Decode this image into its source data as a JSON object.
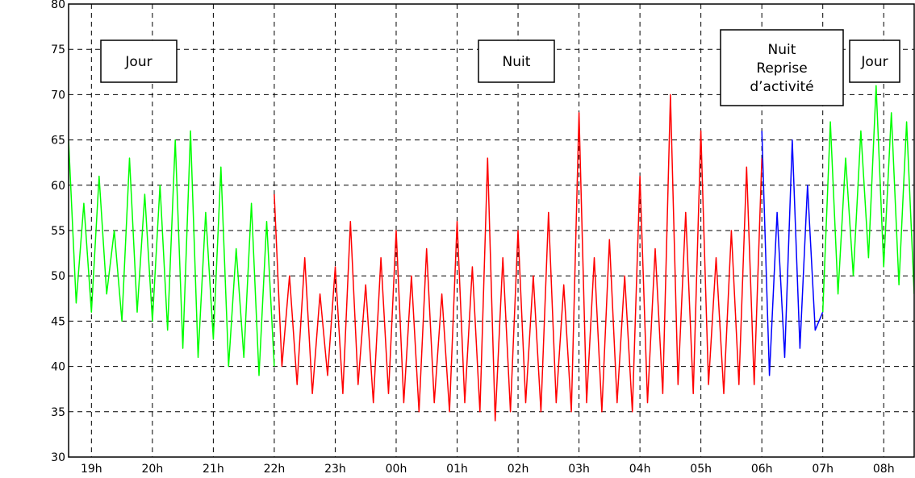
{
  "chart_data": {
    "type": "line",
    "xlim": [
      18.625,
      32.5
    ],
    "ylim": [
      30,
      80
    ],
    "xticks": [
      {
        "value": 19,
        "label": "19h"
      },
      {
        "value": 20,
        "label": "20h"
      },
      {
        "value": 21,
        "label": "21h"
      },
      {
        "value": 22,
        "label": "22h"
      },
      {
        "value": 23,
        "label": "23h"
      },
      {
        "value": 24,
        "label": "00h"
      },
      {
        "value": 25,
        "label": "01h"
      },
      {
        "value": 26,
        "label": "02h"
      },
      {
        "value": 27,
        "label": "03h"
      },
      {
        "value": 28,
        "label": "04h"
      },
      {
        "value": 29,
        "label": "05h"
      },
      {
        "value": 30,
        "label": "06h"
      },
      {
        "value": 31,
        "label": "07h"
      },
      {
        "value": 32,
        "label": "08h"
      }
    ],
    "yticks": [
      30,
      35,
      40,
      45,
      50,
      55,
      60,
      65,
      70,
      75,
      80
    ],
    "grid": true,
    "series": [
      {
        "color": "#00ff00",
        "x": [
          18.625,
          18.75,
          18.875,
          19,
          19.125,
          19.25,
          19.375,
          19.5,
          19.625,
          19.75,
          19.875,
          20,
          20.125,
          20.25,
          20.375,
          20.5,
          20.625,
          20.75,
          20.875,
          21,
          21.125,
          21.25,
          21.375,
          21.5,
          21.625,
          21.75,
          21.875,
          22
        ],
        "values": [
          65,
          47,
          58,
          46,
          61,
          48,
          55,
          45,
          63,
          46,
          59,
          45,
          60,
          44,
          65,
          42,
          66,
          41,
          57,
          43,
          62,
          40,
          53,
          41,
          58,
          39,
          56,
          40
        ]
      },
      {
        "color": "#ff0000",
        "x": [
          22,
          22.125,
          22.25,
          22.375,
          22.5,
          22.625,
          22.75,
          22.875,
          23,
          23.125,
          23.25,
          23.375,
          23.5,
          23.625,
          23.75,
          23.875,
          24,
          24.125,
          24.25,
          24.375,
          24.5,
          24.625,
          24.75,
          24.875,
          25,
          25.125,
          25.25,
          25.375,
          25.5,
          25.625,
          25.75,
          25.875,
          26,
          26.125,
          26.25,
          26.375,
          26.5,
          26.625,
          26.75,
          26.875,
          27,
          27.125,
          27.25,
          27.375,
          27.5,
          27.625,
          27.75,
          27.875,
          28,
          28.125,
          28.25,
          28.375,
          28.5,
          28.625,
          28.75,
          28.875,
          29,
          29.125,
          29.25,
          29.375,
          29.5,
          29.625,
          29.75,
          29.875,
          30
        ],
        "values": [
          59,
          40,
          50,
          38,
          52,
          37,
          48,
          39,
          51,
          37,
          56,
          38,
          49,
          36,
          52,
          37,
          55,
          36,
          50,
          35,
          53,
          36,
          48,
          35,
          56,
          36,
          51,
          35,
          63,
          34,
          52,
          35,
          55,
          36,
          50,
          35,
          57,
          36,
          49,
          35,
          68,
          36,
          52,
          35,
          54,
          36,
          50,
          35,
          61,
          36,
          53,
          37,
          70,
          38,
          57,
          37,
          66,
          38,
          52,
          37,
          55,
          38,
          62,
          38,
          63
        ]
      },
      {
        "color": "#0000ff",
        "x": [
          30,
          30.125,
          30.25,
          30.375,
          30.5,
          30.625,
          30.75,
          30.875,
          31
        ],
        "values": [
          66,
          39,
          57,
          41,
          65,
          42,
          60,
          44,
          46
        ]
      },
      {
        "color": "#00ff00",
        "x": [
          31,
          31.125,
          31.25,
          31.375,
          31.5,
          31.625,
          31.75,
          31.875,
          32,
          32.125,
          32.25,
          32.375,
          32.5
        ],
        "values": [
          46,
          67,
          48,
          63,
          50,
          66,
          52,
          71,
          51,
          68,
          49,
          67,
          48
        ]
      }
    ],
    "annotations": [
      {
        "lines": [
          "Jour"
        ]
      },
      {
        "lines": [
          "Nuit"
        ]
      },
      {
        "lines": [
          "Nuit",
          "Reprise",
          "d’activité"
        ]
      },
      {
        "lines": [
          "Jour"
        ]
      }
    ]
  }
}
